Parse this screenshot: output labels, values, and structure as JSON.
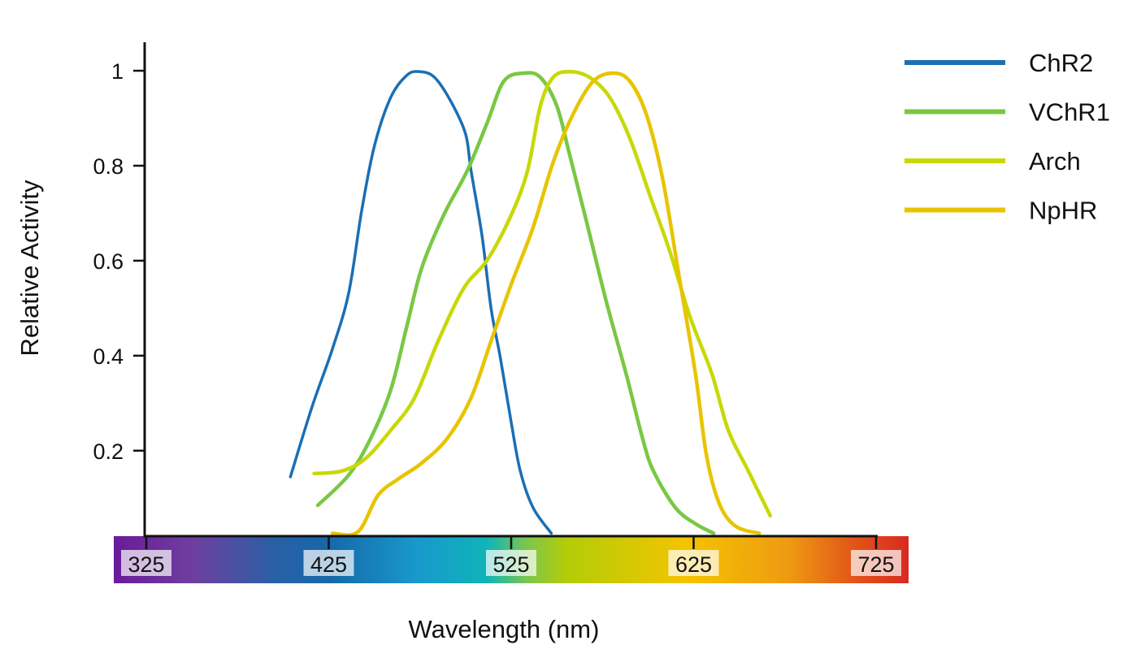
{
  "chart_data": {
    "type": "line",
    "title": "",
    "xlabel": "Wavelength (nm)",
    "ylabel": "Relative Activity",
    "xlim": [
      325,
      725
    ],
    "ylim": [
      0.02,
      1.06
    ],
    "xticks": [
      "325",
      "425",
      "525",
      "625",
      "725"
    ],
    "xtick_values": [
      325,
      425,
      525,
      625,
      725
    ],
    "yticks": [
      "0.2",
      "0.4",
      "0.6",
      "0.8",
      "1"
    ],
    "ytick_values": [
      0.2,
      0.4,
      0.6,
      0.8,
      1.0
    ],
    "grid": false,
    "legend_position": "top-right",
    "x_axis_spectrum": true,
    "series": [
      {
        "name": "ChR2",
        "color": "#1a6fb4",
        "x": [
          404,
          416,
          427,
          436,
          443,
          450,
          459,
          468,
          475,
          483,
          492,
          500,
          503,
          509,
          514,
          519,
          525,
          530,
          537,
          547
        ],
        "y": [
          0.145,
          0.294,
          0.414,
          0.533,
          0.704,
          0.841,
          0.944,
          0.991,
          0.998,
          0.986,
          0.935,
          0.867,
          0.79,
          0.653,
          0.499,
          0.397,
          0.26,
          0.157,
          0.08,
          0.026
        ]
      },
      {
        "name": "VChR1",
        "color": "#78c844",
        "x": [
          419,
          436,
          448,
          459,
          468,
          476,
          488,
          501,
          512,
          521,
          532,
          541,
          550,
          557,
          566,
          577,
          588,
          597,
          603,
          615,
          626,
          636
        ],
        "y": [
          0.085,
          0.149,
          0.226,
          0.328,
          0.465,
          0.585,
          0.696,
          0.79,
          0.892,
          0.978,
          0.995,
          0.986,
          0.926,
          0.824,
          0.687,
          0.516,
          0.362,
          0.226,
          0.157,
          0.08,
          0.046,
          0.026
        ]
      },
      {
        "name": "Arch",
        "color": "#c8d808",
        "x": [
          417,
          432,
          445,
          459,
          472,
          485,
          499,
          512,
          525,
          534,
          541,
          548,
          557,
          568,
          579,
          590,
          601,
          612,
          623,
          635,
          644,
          655,
          667
        ],
        "y": [
          0.152,
          0.157,
          0.183,
          0.243,
          0.311,
          0.431,
          0.542,
          0.602,
          0.696,
          0.79,
          0.926,
          0.986,
          0.998,
          0.986,
          0.944,
          0.858,
          0.738,
          0.619,
          0.482,
          0.362,
          0.243,
          0.157,
          0.063
        ]
      },
      {
        "name": "NpHR",
        "color": "#e8c400",
        "x": [
          427,
          441,
          452,
          463,
          476,
          490,
          503,
          514,
          525,
          537,
          548,
          559,
          570,
          581,
          590,
          599,
          608,
          617,
          626,
          632,
          639,
          648,
          661
        ],
        "y": [
          0.026,
          0.029,
          0.106,
          0.14,
          0.174,
          0.226,
          0.311,
          0.431,
          0.55,
          0.67,
          0.807,
          0.909,
          0.978,
          0.995,
          0.978,
          0.909,
          0.773,
          0.568,
          0.362,
          0.191,
          0.089,
          0.041,
          0.026
        ]
      }
    ]
  }
}
